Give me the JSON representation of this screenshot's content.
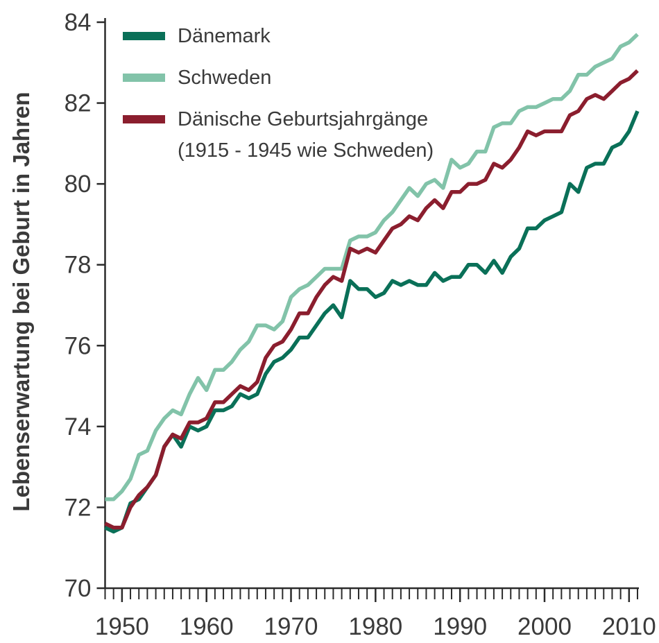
{
  "chart_data": {
    "type": "line",
    "ylabel": "Lebenserwartung bei Geburt in Jahren",
    "xlabel": "",
    "title": "",
    "xlim": [
      1948,
      2011
    ],
    "ylim": [
      70,
      84
    ],
    "x_ticks": [
      1950,
      1960,
      1970,
      1980,
      1990,
      2000,
      2010
    ],
    "y_ticks": [
      70,
      72,
      74,
      76,
      78,
      80,
      82,
      84
    ],
    "grid": false,
    "legend_position": "top-left",
    "x": [
      1948,
      1949,
      1950,
      1951,
      1952,
      1953,
      1954,
      1955,
      1956,
      1957,
      1958,
      1959,
      1960,
      1961,
      1962,
      1963,
      1964,
      1965,
      1966,
      1967,
      1968,
      1969,
      1970,
      1971,
      1972,
      1973,
      1974,
      1975,
      1976,
      1977,
      1978,
      1979,
      1980,
      1981,
      1982,
      1983,
      1984,
      1985,
      1986,
      1987,
      1988,
      1989,
      1990,
      1991,
      1992,
      1993,
      1994,
      1995,
      1996,
      1997,
      1998,
      1999,
      2000,
      2001,
      2002,
      2003,
      2004,
      2005,
      2006,
      2007,
      2008,
      2009,
      2010,
      2011
    ],
    "series": [
      {
        "name": "Dänemark",
        "color": "#0a7058",
        "values": [
          71.5,
          71.4,
          71.5,
          72.1,
          72.2,
          72.5,
          72.8,
          73.5,
          73.8,
          73.5,
          74.0,
          73.9,
          74.0,
          74.4,
          74.4,
          74.5,
          74.8,
          74.7,
          74.8,
          75.3,
          75.6,
          75.7,
          75.9,
          76.2,
          76.2,
          76.5,
          76.8,
          77.0,
          76.7,
          77.6,
          77.4,
          77.4,
          77.2,
          77.3,
          77.6,
          77.5,
          77.6,
          77.5,
          77.5,
          77.8,
          77.6,
          77.7,
          77.7,
          78.0,
          78.0,
          77.8,
          78.1,
          77.8,
          78.2,
          78.4,
          78.9,
          78.9,
          79.1,
          79.2,
          79.3,
          80.0,
          79.8,
          80.4,
          80.5,
          80.5,
          80.9,
          81.0,
          81.3,
          81.8
        ]
      },
      {
        "name": "Schweden",
        "color": "#82c3a9",
        "values": [
          72.2,
          72.2,
          72.4,
          72.7,
          73.3,
          73.4,
          73.9,
          74.2,
          74.4,
          74.3,
          74.8,
          75.2,
          74.9,
          75.4,
          75.4,
          75.6,
          75.9,
          76.1,
          76.5,
          76.5,
          76.4,
          76.6,
          77.2,
          77.4,
          77.5,
          77.7,
          77.9,
          77.9,
          77.9,
          78.6,
          78.7,
          78.7,
          78.8,
          79.1,
          79.3,
          79.6,
          79.9,
          79.7,
          80.0,
          80.1,
          79.9,
          80.6,
          80.4,
          80.5,
          80.8,
          80.8,
          81.4,
          81.5,
          81.5,
          81.8,
          81.9,
          81.9,
          82.0,
          82.1,
          82.1,
          82.3,
          82.7,
          82.7,
          82.9,
          83.0,
          83.1,
          83.4,
          83.5,
          83.7
        ]
      },
      {
        "name": "Dänische Geburtsjahrgänge (1915 - 1945 wie Schweden)",
        "legend_lines": [
          "Dänische Geburtsjahrgänge",
          "(1915 - 1945 wie Schweden)"
        ],
        "color": "#8b1e2e",
        "values": [
          71.6,
          71.5,
          71.5,
          72.0,
          72.3,
          72.5,
          72.8,
          73.5,
          73.8,
          73.7,
          74.1,
          74.1,
          74.2,
          74.6,
          74.6,
          74.8,
          75.0,
          74.9,
          75.1,
          75.7,
          76.0,
          76.1,
          76.4,
          76.8,
          76.8,
          77.2,
          77.5,
          77.7,
          77.6,
          78.4,
          78.3,
          78.4,
          78.3,
          78.6,
          78.9,
          79.0,
          79.2,
          79.1,
          79.4,
          79.6,
          79.4,
          79.8,
          79.8,
          80.0,
          80.0,
          80.1,
          80.5,
          80.4,
          80.6,
          80.9,
          81.3,
          81.2,
          81.3,
          81.3,
          81.3,
          81.7,
          81.8,
          82.1,
          82.2,
          82.1,
          82.3,
          82.5,
          82.6,
          82.8
        ]
      }
    ]
  }
}
